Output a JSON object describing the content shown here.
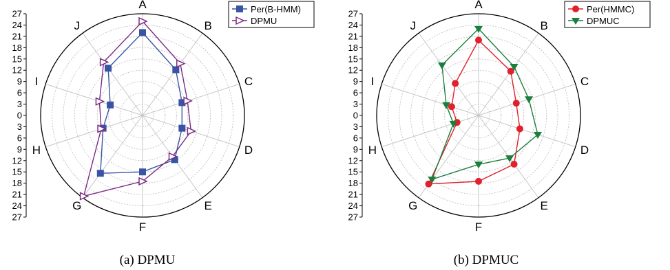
{
  "captions": {
    "left": "(a) DPMU",
    "right": "(b) DPMUC"
  },
  "chart_data": [
    {
      "type": "radar",
      "categories": [
        "A",
        "B",
        "C",
        "D",
        "E",
        "F",
        "G",
        "H",
        "I",
        "J"
      ],
      "radial_range": [
        0,
        27
      ],
      "radial_ticks": [
        0,
        3,
        6,
        9,
        12,
        15,
        18,
        21,
        24,
        27
      ],
      "radial_tick_labels": [
        "27",
        "24",
        "21",
        "18",
        "15",
        "12",
        "9",
        "6",
        "3",
        "0",
        "3",
        "6",
        "9",
        "12",
        "15",
        "18",
        "21",
        "24",
        "27"
      ],
      "grid": true,
      "legend_position": "top-right",
      "series": [
        {
          "name": "Per(B-HMM)",
          "color": "#3a54a4",
          "marker": "square",
          "values": [
            22,
            15,
            11,
            11,
            14.5,
            15,
            19,
            11,
            9,
            15.5
          ]
        },
        {
          "name": "DPMU",
          "color": "#7b2b84",
          "marker": "triangle-right",
          "values": [
            25,
            17,
            12.5,
            13.5,
            13.5,
            17.5,
            26.5,
            11.5,
            12,
            17.5
          ]
        }
      ]
    },
    {
      "type": "radar",
      "categories": [
        "A",
        "B",
        "C",
        "D",
        "E",
        "F",
        "G",
        "H",
        "I",
        "J"
      ],
      "radial_range": [
        0,
        27
      ],
      "radial_ticks": [
        0,
        3,
        6,
        9,
        12,
        15,
        18,
        21,
        24,
        27
      ],
      "radial_tick_labels": [
        "27",
        "24",
        "21",
        "18",
        "15",
        "12",
        "9",
        "6",
        "3",
        "0",
        "3",
        "6",
        "9",
        "12",
        "15",
        "18",
        "21",
        "24",
        "27"
      ],
      "grid": true,
      "legend_position": "top-right",
      "series": [
        {
          "name": "Per(HMMC)",
          "color": "#e0202b",
          "marker": "circle",
          "values": [
            20,
            14.5,
            10.5,
            11.5,
            16,
            17.5,
            22.5,
            6,
            7.5,
            10.5
          ]
        },
        {
          "name": "DPMUC",
          "color": "#1a7f3c",
          "marker": "triangle-down",
          "values": [
            23,
            16,
            14,
            16.5,
            14,
            13,
            21,
            7,
            9,
            16.5
          ]
        }
      ]
    }
  ]
}
